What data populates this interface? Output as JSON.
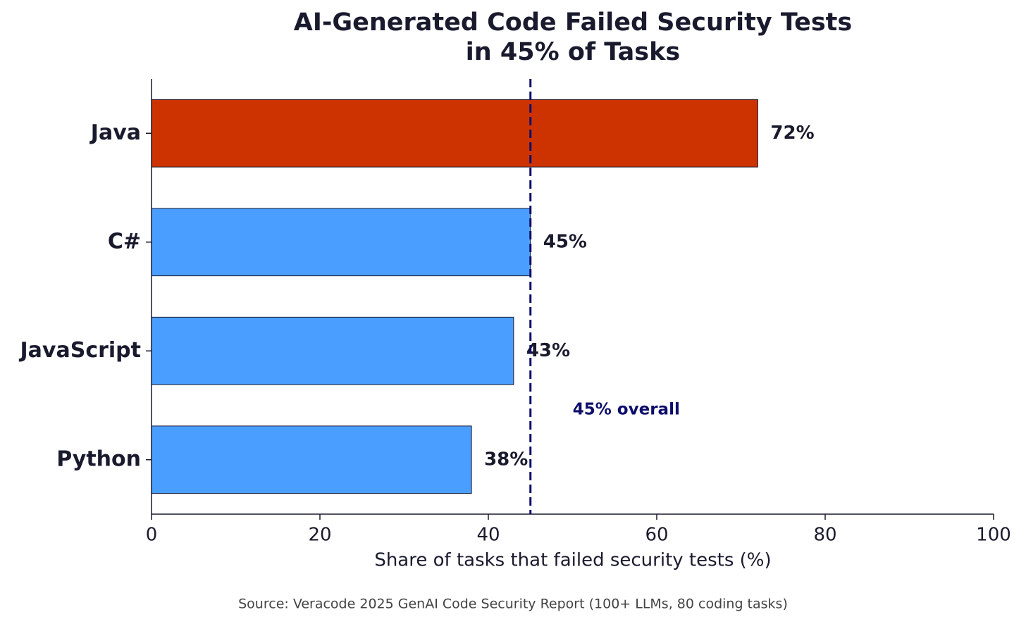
{
  "chart_data": {
    "type": "bar",
    "orientation": "horizontal",
    "title": "AI-Generated Code Failed Security Tests\nin 45% of Tasks",
    "x_label": "Share of tasks that failed security tests (%)",
    "source": "Source: Veracode 2025 GenAI Code Security Report (100+ LLMs, 80 coding tasks)",
    "categories": [
      "Java",
      "C#",
      "JavaScript",
      "Python"
    ],
    "values": [
      72,
      45,
      43,
      38
    ],
    "value_labels": [
      "72%",
      "45%",
      "43%",
      "38%"
    ],
    "colors": [
      "#cc3300",
      "#4a9eff",
      "#4a9eff",
      "#4a9eff"
    ],
    "reference_line": {
      "value": 45,
      "label": "45% overall",
      "color": "#0d0d6b"
    },
    "xlim": [
      0,
      100
    ],
    "xticks": [
      0,
      20,
      40,
      60,
      80,
      100
    ],
    "grid": false
  }
}
